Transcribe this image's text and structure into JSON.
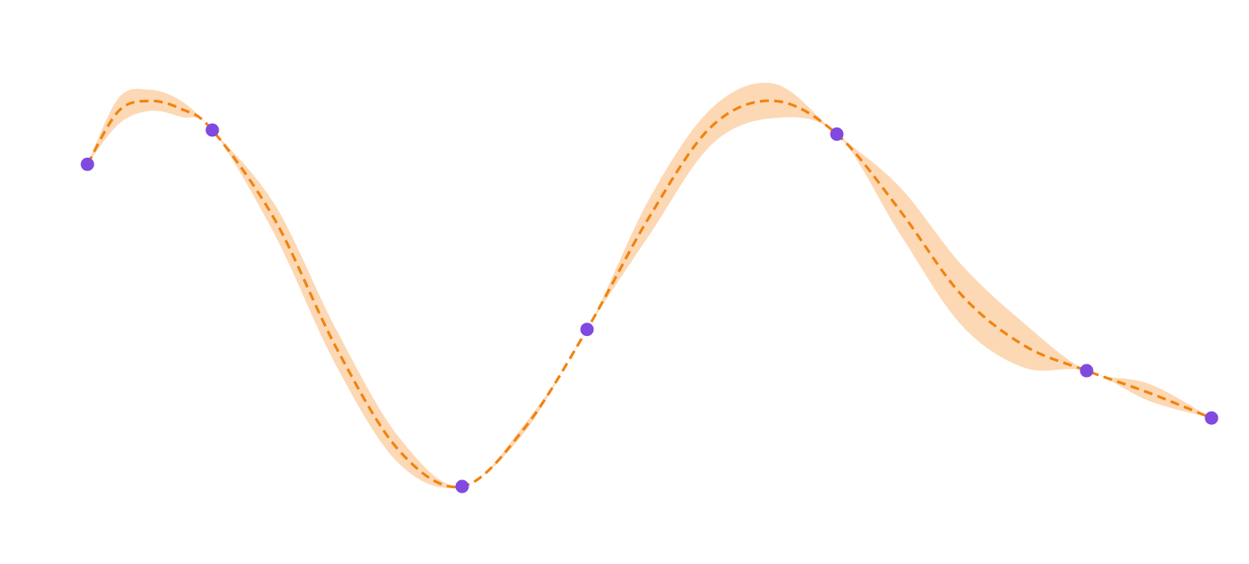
{
  "chart_data": {
    "type": "line",
    "title": "",
    "xlabel": "",
    "ylabel": "",
    "axes_visible": false,
    "grid": false,
    "legend": "none",
    "xlim": [
      -0.5,
      8.5
    ],
    "ylim": [
      -2.2,
      2.5
    ],
    "colors": {
      "band": "#FDD8B4",
      "mean_line": "#F0830F",
      "points": "#8049DF"
    },
    "series": [
      {
        "kind": "observations",
        "x": [
          0,
          1,
          3,
          4,
          6,
          8,
          9
        ],
        "y": [
          1.4,
          1.74,
          -1.8,
          -0.24,
          1.7,
          -0.65,
          -1.12
        ]
      },
      {
        "kind": "mean",
        "x": [
          0,
          0.25,
          0.5,
          0.75,
          1,
          1.5,
          2,
          2.5,
          3,
          3.5,
          4,
          4.5,
          5,
          5.5,
          6,
          6.5,
          7,
          7.5,
          8,
          8.5,
          9
        ],
        "y": [
          1.4,
          1.93,
          2.03,
          1.95,
          1.74,
          0.85,
          -0.44,
          -1.45,
          -1.8,
          -1.22,
          -0.24,
          0.88,
          1.78,
          2.03,
          1.7,
          0.95,
          0.1,
          -0.4,
          -0.65,
          -0.87,
          -1.12
        ]
      },
      {
        "kind": "band",
        "x": [
          0,
          0.25,
          0.5,
          0.75,
          1,
          1.5,
          2,
          2.5,
          3,
          3.5,
          4,
          4.5,
          5,
          5.5,
          6,
          6.5,
          7,
          7.5,
          8,
          8.5,
          9
        ],
        "lower": [
          1.4,
          1.8,
          1.93,
          1.87,
          1.74,
          0.7,
          -0.62,
          -1.58,
          -1.8,
          -1.26,
          -0.24,
          0.7,
          1.6,
          1.86,
          1.7,
          0.72,
          -0.2,
          -0.62,
          -0.65,
          -0.95,
          -1.12
        ],
        "upper": [
          1.4,
          2.06,
          2.14,
          2.03,
          1.74,
          1.0,
          -0.26,
          -1.32,
          -1.8,
          -1.18,
          -0.24,
          1.06,
          1.96,
          2.2,
          1.7,
          1.18,
          0.4,
          -0.18,
          -0.65,
          -0.78,
          -1.12
        ]
      }
    ]
  }
}
